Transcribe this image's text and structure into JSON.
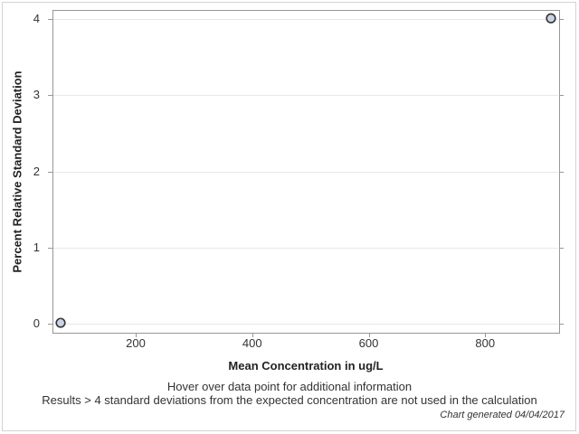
{
  "chart_data": {
    "type": "scatter",
    "title": "",
    "xlabel": "Mean Concentration in ug/L",
    "ylabel": "Percent Relative Standard Deviation",
    "points": [
      {
        "x": 71,
        "y": 0.01
      },
      {
        "x": 913,
        "y": 4.01
      }
    ],
    "xticks": [
      200,
      400,
      600,
      800
    ],
    "yticks": [
      0,
      1,
      2,
      3,
      4
    ],
    "xlim": [
      57,
      927
    ],
    "ylim": [
      -0.12,
      4.12
    ],
    "grid": "horizontal-only",
    "legend": "none",
    "marker": {
      "shape": "circle",
      "fill": "#c9d3e2",
      "stroke": "#333333",
      "radius": 4.8
    }
  },
  "footnotes": {
    "line1": "Hover over data point for additional information",
    "line2": "Results > 4 standard deviations from the expected concentration are not used in the calculation",
    "generated": "Chart generated 04/04/2017"
  },
  "colors": {
    "frame": "#979797",
    "grid": "#e8e8e8",
    "tick": "#979797",
    "text": "#333333",
    "background": "#ffffff",
    "border": "#d3d3d3"
  }
}
